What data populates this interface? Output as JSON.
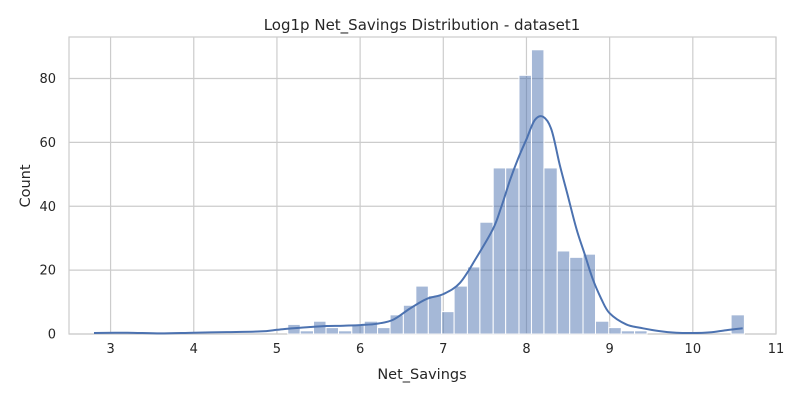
{
  "chart_data": {
    "type": "bar",
    "title": "Log1p Net_Savings Distribution - dataset1",
    "xlabel": "Net_Savings",
    "ylabel": "Count",
    "xlim": [
      2.5,
      11.0
    ],
    "ylim": [
      0,
      93
    ],
    "xticks": [
      3,
      4,
      5,
      6,
      7,
      8,
      9,
      10,
      11
    ],
    "yticks": [
      0,
      20,
      40,
      60,
      80
    ],
    "grid": true,
    "bar_color": "#4c72b0",
    "bar_opacity": 0.5,
    "kde_color": "#4c72b0",
    "bins": [
      {
        "x0": 5.13,
        "x1": 5.28,
        "count": 3
      },
      {
        "x0": 5.28,
        "x1": 5.44,
        "count": 1
      },
      {
        "x0": 5.44,
        "x1": 5.59,
        "count": 4
      },
      {
        "x0": 5.59,
        "x1": 5.74,
        "count": 2
      },
      {
        "x0": 5.74,
        "x1": 5.9,
        "count": 1
      },
      {
        "x0": 5.9,
        "x1": 6.05,
        "count": 3
      },
      {
        "x0": 6.05,
        "x1": 6.21,
        "count": 4
      },
      {
        "x0": 6.21,
        "x1": 6.36,
        "count": 2
      },
      {
        "x0": 6.36,
        "x1": 6.52,
        "count": 6
      },
      {
        "x0": 6.52,
        "x1": 6.67,
        "count": 9
      },
      {
        "x0": 6.67,
        "x1": 6.82,
        "count": 15
      },
      {
        "x0": 6.82,
        "x1": 6.98,
        "count": 12
      },
      {
        "x0": 6.98,
        "x1": 7.13,
        "count": 7
      },
      {
        "x0": 7.13,
        "x1": 7.29,
        "count": 15
      },
      {
        "x0": 7.29,
        "x1": 7.44,
        "count": 21
      },
      {
        "x0": 7.44,
        "x1": 7.6,
        "count": 35
      },
      {
        "x0": 7.6,
        "x1": 7.75,
        "count": 52
      },
      {
        "x0": 7.75,
        "x1": 7.91,
        "count": 52
      },
      {
        "x0": 7.91,
        "x1": 8.06,
        "count": 81
      },
      {
        "x0": 8.06,
        "x1": 8.21,
        "count": 89
      },
      {
        "x0": 8.21,
        "x1": 8.37,
        "count": 52
      },
      {
        "x0": 8.37,
        "x1": 8.52,
        "count": 26
      },
      {
        "x0": 8.52,
        "x1": 8.68,
        "count": 24
      },
      {
        "x0": 8.68,
        "x1": 8.83,
        "count": 25
      },
      {
        "x0": 8.83,
        "x1": 8.99,
        "count": 4
      },
      {
        "x0": 8.99,
        "x1": 9.14,
        "count": 2
      },
      {
        "x0": 9.14,
        "x1": 9.3,
        "count": 1
      },
      {
        "x0": 9.3,
        "x1": 9.45,
        "count": 1
      },
      {
        "x0": 10.46,
        "x1": 10.62,
        "count": 6
      }
    ],
    "kde": {
      "x": [
        2.8,
        3.2,
        3.6,
        4.0,
        4.4,
        4.8,
        5.0,
        5.2,
        5.4,
        5.6,
        5.8,
        6.0,
        6.2,
        6.4,
        6.6,
        6.8,
        7.0,
        7.2,
        7.4,
        7.6,
        7.7,
        7.8,
        7.9,
        8.0,
        8.1,
        8.2,
        8.3,
        8.4,
        8.5,
        8.6,
        8.7,
        8.8,
        8.9,
        9.0,
        9.2,
        9.4,
        9.6,
        9.8,
        10.0,
        10.2,
        10.4,
        10.6
      ],
      "y": [
        0.3,
        0.4,
        0.2,
        0.4,
        0.6,
        0.8,
        1.3,
        1.8,
        2.2,
        2.5,
        2.6,
        2.8,
        3.2,
        4.5,
        8.0,
        11.0,
        12.5,
        16.0,
        24.0,
        33.0,
        40.0,
        48.0,
        55.0,
        61.0,
        67.0,
        68.0,
        64.0,
        53.0,
        43.0,
        33.0,
        25.0,
        17.0,
        11.0,
        6.5,
        3.0,
        1.8,
        0.9,
        0.4,
        0.3,
        0.5,
        1.2,
        1.8
      ]
    }
  }
}
